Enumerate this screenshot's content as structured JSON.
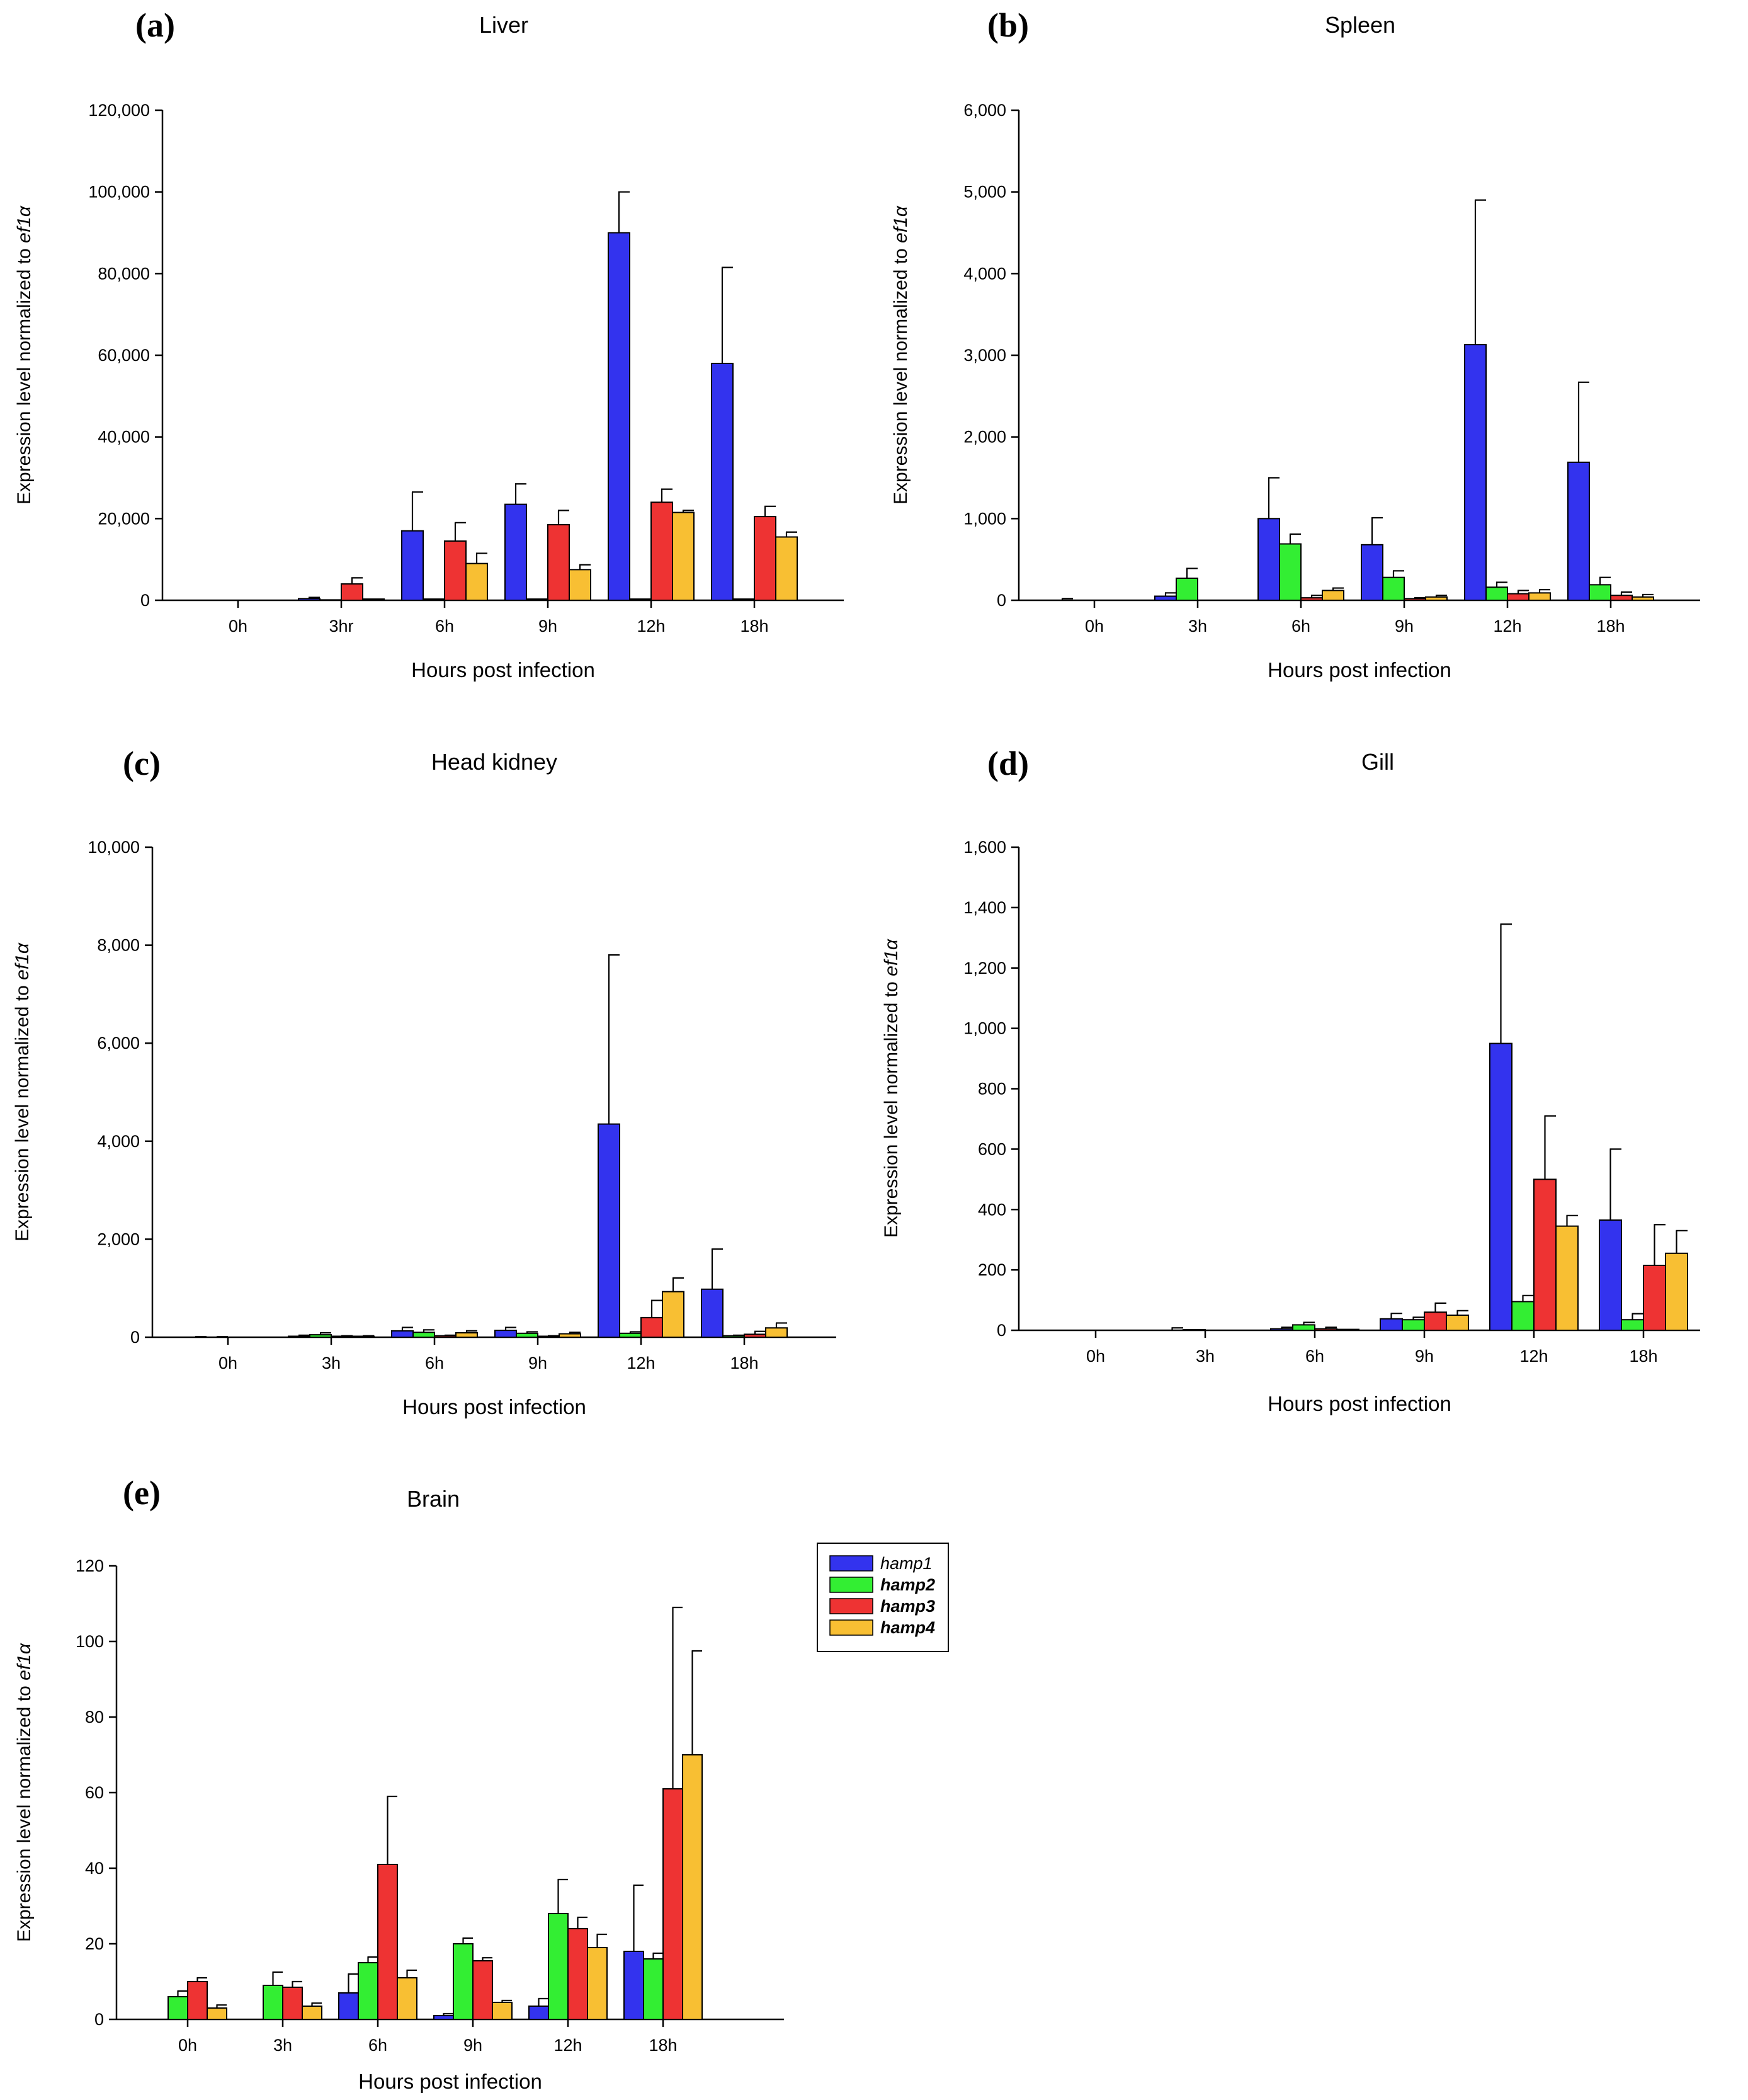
{
  "series_styles": [
    {
      "name": "hamp1",
      "color": "#3333ee"
    },
    {
      "name": "hamp2",
      "color": "#33ee33"
    },
    {
      "name": "hamp3",
      "color": "#ee3333"
    },
    {
      "name": "hamp4",
      "color": "#f8bf33"
    }
  ],
  "legend": {
    "entries": [
      "hamp1",
      "hamp2",
      "hamp3",
      "hamp4"
    ]
  },
  "chart_data": [
    {
      "id": "a",
      "panel_label": "(a)",
      "type": "bar",
      "title": "Liver",
      "xlabel": "Hours post infection",
      "ylabel_prefix": "Expression level normalized to ",
      "ylabel_italic": "ef1α",
      "categories": [
        "0h",
        "3hr",
        "6h",
        "9h",
        "12h",
        "18h"
      ],
      "ylim": [
        0,
        120000
      ],
      "yticks": [
        0,
        20000,
        40000,
        60000,
        80000,
        100000,
        120000
      ],
      "ytick_labels": [
        "0",
        "20,000",
        "40,000",
        "60,000",
        "80,000",
        "100,000",
        "120,000"
      ],
      "series": [
        {
          "name": "hamp1",
          "values": [
            0,
            400,
            17000,
            23500,
            90000,
            58000
          ],
          "errors": [
            0,
            300,
            9500,
            5000,
            10000,
            23500
          ]
        },
        {
          "name": "hamp2",
          "values": [
            0,
            100,
            300,
            300,
            300,
            300
          ],
          "errors": [
            0,
            0,
            0,
            0,
            0,
            0
          ]
        },
        {
          "name": "hamp3",
          "values": [
            0,
            4000,
            14500,
            18500,
            24000,
            20500
          ],
          "errors": [
            0,
            1500,
            4500,
            3500,
            3200,
            2500
          ]
        },
        {
          "name": "hamp4",
          "values": [
            0,
            300,
            9000,
            7500,
            21500,
            15500
          ],
          "errors": [
            0,
            0,
            2500,
            1200,
            500,
            1200
          ]
        }
      ]
    },
    {
      "id": "b",
      "panel_label": "(b)",
      "type": "bar",
      "title": "Spleen",
      "xlabel": "Hours post infection",
      "ylabel_prefix": "Expression level normalized to ",
      "ylabel_italic": "ef1α",
      "categories": [
        "0h",
        "3h",
        "6h",
        "9h",
        "12h",
        "18h"
      ],
      "ylim": [
        0,
        6000
      ],
      "yticks": [
        0,
        1000,
        2000,
        3000,
        4000,
        5000,
        6000
      ],
      "ytick_labels": [
        "0",
        "1,000",
        "2,000",
        "3,000",
        "4,000",
        "5,000",
        "6,000"
      ],
      "series": [
        {
          "name": "hamp1",
          "values": [
            0,
            50,
            1000,
            680,
            3130,
            1690
          ],
          "errors": [
            20,
            40,
            500,
            330,
            1770,
            980
          ]
        },
        {
          "name": "hamp2",
          "values": [
            0,
            270,
            690,
            280,
            160,
            190
          ],
          "errors": [
            0,
            120,
            120,
            80,
            60,
            90
          ]
        },
        {
          "name": "hamp3",
          "values": [
            0,
            0,
            30,
            20,
            80,
            60
          ],
          "errors": [
            0,
            0,
            30,
            10,
            40,
            40
          ]
        },
        {
          "name": "hamp4",
          "values": [
            0,
            0,
            120,
            40,
            90,
            40
          ],
          "errors": [
            0,
            0,
            30,
            20,
            40,
            30
          ]
        }
      ]
    },
    {
      "id": "c",
      "panel_label": "(c)",
      "type": "bar",
      "title": "Head kidney",
      "xlabel": "Hours post infection",
      "ylabel_prefix": "Expression level normalized to ",
      "ylabel_italic": "ef1α",
      "categories": [
        "0h",
        "3h",
        "6h",
        "9h",
        "12h",
        "18h"
      ],
      "ylim": [
        0,
        10000
      ],
      "yticks": [
        0,
        2000,
        4000,
        6000,
        8000,
        10000
      ],
      "ytick_labels": [
        "0",
        "2,000",
        "4,000",
        "6,000",
        "8,000",
        "10,000"
      ],
      "series": [
        {
          "name": "hamp1",
          "values": [
            0,
            20,
            130,
            140,
            4350,
            980
          ],
          "errors": [
            10,
            20,
            70,
            60,
            3450,
            820
          ]
        },
        {
          "name": "hamp2",
          "values": [
            0,
            50,
            100,
            80,
            80,
            30
          ],
          "errors": [
            10,
            40,
            50,
            30,
            30,
            10
          ]
        },
        {
          "name": "hamp3",
          "values": [
            0,
            20,
            30,
            20,
            400,
            60
          ],
          "errors": [
            0,
            10,
            10,
            10,
            350,
            60
          ]
        },
        {
          "name": "hamp4",
          "values": [
            0,
            20,
            90,
            70,
            930,
            190
          ],
          "errors": [
            0,
            10,
            40,
            30,
            280,
            100
          ]
        }
      ]
    },
    {
      "id": "d",
      "panel_label": "(d)",
      "type": "bar",
      "title": "Gill",
      "xlabel": "Hours post infection",
      "ylabel_prefix": "Expression level normalized to ",
      "ylabel_italic": "ef1α",
      "categories": [
        "0h",
        "3h",
        "6h",
        "9h",
        "12h",
        "18h"
      ],
      "ylim": [
        0,
        1600
      ],
      "yticks": [
        0,
        200,
        400,
        600,
        800,
        1000,
        1200,
        1400,
        1600
      ],
      "ytick_labels": [
        "0",
        "200",
        "400",
        "600",
        "800",
        "1,000",
        "1,200",
        "1,400",
        "1,600"
      ],
      "series": [
        {
          "name": "hamp1",
          "values": [
            0,
            0,
            5,
            38,
            950,
            365
          ],
          "errors": [
            0,
            8,
            5,
            18,
            395,
            235
          ]
        },
        {
          "name": "hamp2",
          "values": [
            0,
            2,
            18,
            35,
            95,
            35
          ],
          "errors": [
            0,
            0,
            8,
            8,
            20,
            20
          ]
        },
        {
          "name": "hamp3",
          "values": [
            0,
            0,
            5,
            60,
            500,
            215
          ],
          "errors": [
            0,
            0,
            5,
            30,
            210,
            135
          ]
        },
        {
          "name": "hamp4",
          "values": [
            0,
            0,
            3,
            50,
            345,
            255
          ],
          "errors": [
            0,
            0,
            0,
            15,
            35,
            75
          ]
        }
      ]
    },
    {
      "id": "e",
      "panel_label": "(e)",
      "type": "bar",
      "title": "Brain",
      "xlabel": "Hours post infection",
      "ylabel_prefix": "Expression level normalized to ",
      "ylabel_italic": "ef1α",
      "categories": [
        "0h",
        "3h",
        "6h",
        "9h",
        "12h",
        "18h"
      ],
      "ylim": [
        0,
        120
      ],
      "yticks": [
        0,
        20,
        40,
        60,
        80,
        100,
        120
      ],
      "ytick_labels": [
        "0",
        "20",
        "40",
        "60",
        "80",
        "100",
        "120"
      ],
      "series": [
        {
          "name": "hamp1",
          "values": [
            0,
            0,
            7,
            1,
            3.5,
            18
          ],
          "errors": [
            0,
            0,
            5,
            0.5,
            2,
            17.5
          ]
        },
        {
          "name": "hamp2",
          "values": [
            6,
            9,
            15,
            20,
            28,
            16
          ],
          "errors": [
            1.5,
            3.5,
            1.5,
            1.5,
            9,
            1.5
          ]
        },
        {
          "name": "hamp3",
          "values": [
            10,
            8.5,
            41,
            15.5,
            24,
            61
          ],
          "errors": [
            1,
            1.5,
            18,
            0.8,
            3,
            48
          ]
        },
        {
          "name": "hamp4",
          "values": [
            3,
            3.5,
            11,
            4.5,
            19,
            70
          ],
          "errors": [
            0.8,
            0.8,
            2,
            0.5,
            3.5,
            27.5
          ]
        }
      ]
    }
  ]
}
